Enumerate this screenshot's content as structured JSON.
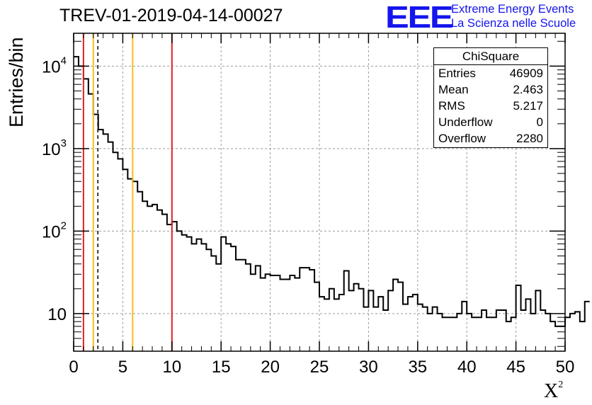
{
  "header": {
    "title": "TREV-01-2019-04-14-00027",
    "logo": "EEE",
    "logo_line1": "Extreme Energy Events",
    "logo_line2": "La Scienza nelle Scuole"
  },
  "colors": {
    "red_line": "#e02020",
    "yellow_line": "#f0c020",
    "logo_blue": "#1515ee",
    "grid": "#9a9a9a"
  },
  "stats_box": {
    "title": "ChiSquare",
    "rows": [
      {
        "label": "Entries",
        "value": "46909"
      },
      {
        "label": "Mean",
        "value": "2.463"
      },
      {
        "label": "RMS",
        "value": "5.217"
      },
      {
        "label": "Underflow",
        "value": "0"
      },
      {
        "label": "Overflow",
        "value": "2280"
      }
    ]
  },
  "chart_data": {
    "type": "histogram",
    "title": "TREV-01-2019-04-14-00027",
    "xlabel": "X",
    "xlabel_sup": "2",
    "ylabel": "Entries/bin",
    "xlim": [
      0,
      50
    ],
    "ylim": [
      3.5,
      25000
    ],
    "yscale": "log",
    "grid": true,
    "x_ticks": [
      0,
      5,
      10,
      15,
      20,
      25,
      30,
      35,
      40,
      45,
      50
    ],
    "y_ticks": [
      {
        "value": 10,
        "label": "10",
        "exp": ""
      },
      {
        "value": 100,
        "label": "10",
        "exp": "2"
      },
      {
        "value": 1000,
        "label": "10",
        "exp": "3"
      },
      {
        "value": 10000,
        "label": "10",
        "exp": "4"
      }
    ],
    "bin_width": 0.5,
    "bin_values": [
      13000,
      10000,
      7000,
      4600,
      2600,
      1700,
      1500,
      1200,
      900,
      750,
      560,
      430,
      400,
      300,
      230,
      200,
      210,
      180,
      160,
      120,
      130,
      100,
      90,
      85,
      70,
      80,
      70,
      60,
      50,
      40,
      85,
      70,
      65,
      45,
      45,
      40,
      30,
      38,
      27,
      30,
      29,
      29,
      26,
      26,
      29,
      27,
      36,
      36,
      34,
      24,
      16,
      15,
      20,
      15,
      17,
      33,
      19,
      23,
      20,
      12,
      19,
      12,
      16,
      11,
      19,
      26,
      24,
      13,
      16,
      17,
      13,
      12,
      10,
      12,
      10,
      9,
      9,
      9,
      10,
      14,
      10,
      9,
      9,
      11,
      9,
      9,
      11,
      11,
      8,
      9,
      22,
      11,
      15,
      10,
      19,
      11,
      10,
      8,
      7,
      7,
      9,
      10,
      10.5,
      8,
      14
    ],
    "vertical_lines": [
      {
        "x": 1.0,
        "style": "red"
      },
      {
        "x": 2.0,
        "style": "yellow"
      },
      {
        "x": 2.463,
        "style": "dashed"
      },
      {
        "x": 6.0,
        "style": "yellow"
      },
      {
        "x": 10.0,
        "style": "red"
      }
    ]
  }
}
